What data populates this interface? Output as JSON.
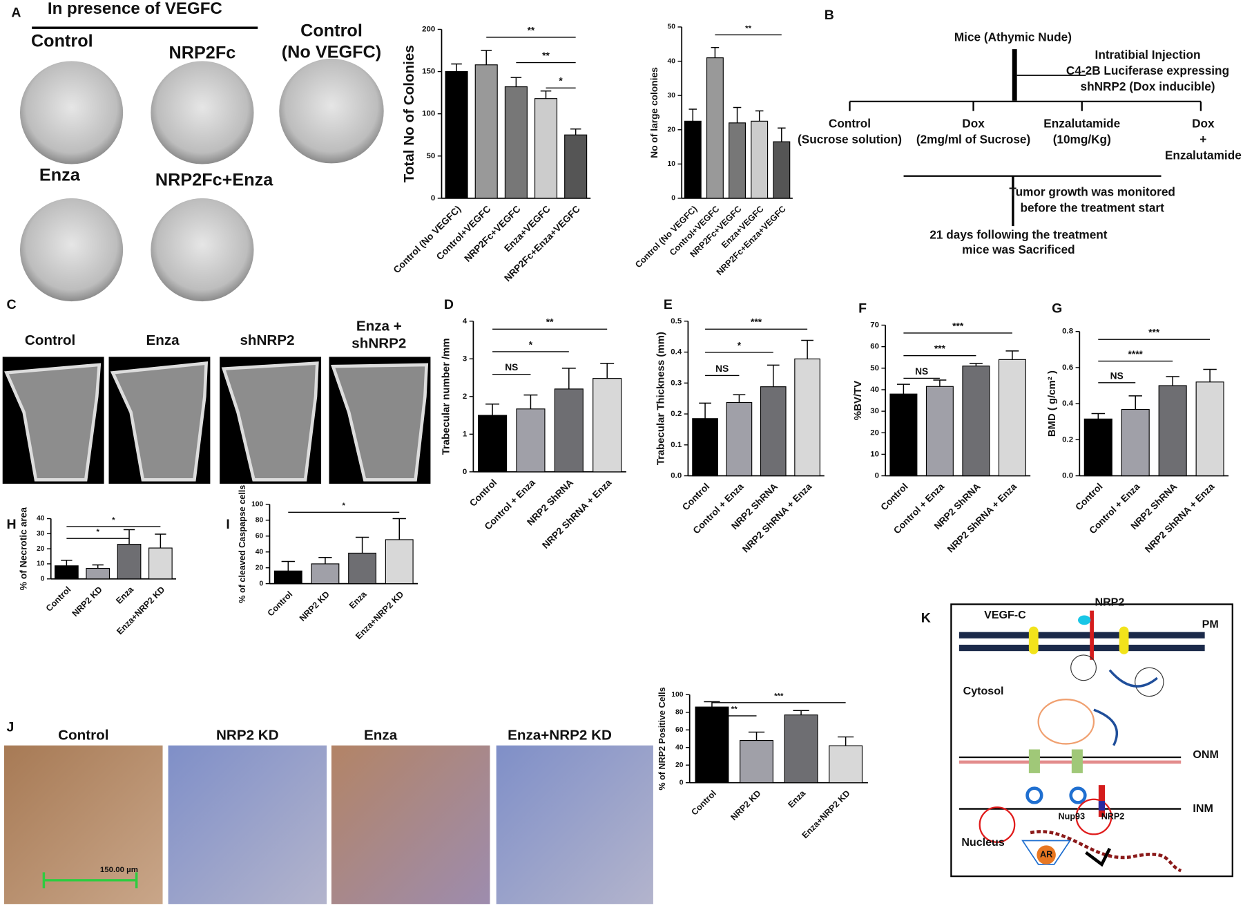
{
  "figure": {
    "panel_labels": [
      "A",
      "B",
      "C",
      "D",
      "E",
      "F",
      "G",
      "H",
      "I",
      "J",
      "K"
    ],
    "panel_a": {
      "heading": "In presence of VEGFC",
      "images": [
        [
          "Control"
        ],
        [
          "NRP2Fc"
        ],
        [
          "Control",
          "(No VEGFC)"
        ],
        [
          "Enza"
        ],
        [
          "NRP2Fc+Enza"
        ]
      ]
    },
    "panel_b": {
      "lines": [
        "Mice (Athymic Nude)",
        "Intratibial Injection",
        "C4-2B Luciferase expressing",
        "shNRP2 (Dox inducible)",
        "Control",
        "(Sucrose solution)",
        "Dox",
        "(2mg/ml of Sucrose)",
        "Enzalutamide",
        "(10mg/Kg)",
        "Dox",
        "+",
        "Enzalutamide",
        "Tumor growth was monitored",
        "before the treatment start",
        "21 days following the treatment",
        "mice was Sacrificed"
      ]
    },
    "panel_c": {
      "images": [
        [
          "Control"
        ],
        [
          "Enza"
        ],
        [
          "shNRP2"
        ],
        [
          "Enza +",
          "shNRP2"
        ]
      ]
    },
    "panel_j": {
      "images": [
        "Control",
        "NRP2 KD",
        "Enza",
        "Enza+NRP2 KD"
      ],
      "scale_bar": "150.00 µm"
    },
    "panel_k": {
      "labels": [
        "VEGF-C",
        "NRP2",
        "PM",
        "Cytosol",
        "ONM",
        "INM",
        "Nup93",
        "NRP2",
        "Nucleus",
        "AR"
      ]
    }
  },
  "chart_data": [
    {
      "type": "bar",
      "ylabel": "Total No of Colonies",
      "categories": [
        "Control (No VEGFC)",
        "Control+VEGFC",
        "NRP2Fc+VEGFC",
        "Enza+VEGFC",
        "NRP2Fc+Enza+VEGFC"
      ],
      "values": [
        150,
        158,
        132,
        118,
        75
      ],
      "errors": [
        9,
        17,
        11,
        9,
        7
      ],
      "colors": [
        "#000000",
        "#999999",
        "#777777",
        "#cccccc",
        "#555555"
      ],
      "ylim": [
        0,
        200
      ],
      "yticks": [
        0,
        50,
        100,
        150,
        200
      ],
      "annotations": [
        {
          "label": "*",
          "between": [
            "Enza+VEGFC",
            "NRP2Fc+Enza+VEGFC"
          ]
        },
        {
          "label": "**",
          "between": [
            "NRP2Fc+VEGFC",
            "NRP2Fc+Enza+VEGFC"
          ]
        },
        {
          "label": "**",
          "between": [
            "Control+VEGFC",
            "NRP2Fc+Enza+VEGFC"
          ]
        }
      ]
    },
    {
      "type": "bar",
      "ylabel": "No of large colonies",
      "categories": [
        "Control (No VEGFC)",
        "Control+VEGFC",
        "NRP2Fc+VEGFC",
        "Enza+VEGFC",
        "NRP2Fc+Enza+VEGFC"
      ],
      "values": [
        22.5,
        41,
        22,
        22.5,
        16.5
      ],
      "errors": [
        3.5,
        3,
        4.5,
        3,
        4
      ],
      "colors": [
        "#000000",
        "#999999",
        "#777777",
        "#cccccc",
        "#555555"
      ],
      "ylim": [
        0,
        50
      ],
      "yticks": [
        0,
        10,
        20,
        30,
        40,
        50
      ],
      "annotations": [
        {
          "label": "**",
          "between": [
            "Control+VEGFC",
            "NRP2Fc+Enza+VEGFC"
          ]
        }
      ]
    },
    {
      "type": "bar",
      "ylabel": "Trabecular number /mm",
      "categories": [
        "Control",
        "Control + Enza",
        "NRP2 ShRNA",
        "NRP2 ShRNA + Enza"
      ],
      "values": [
        1.5,
        1.67,
        2.2,
        2.48
      ],
      "errors": [
        0.3,
        0.37,
        0.55,
        0.4
      ],
      "colors": [
        "#000000",
        "#a0a0a8",
        "#6e6e72",
        "#d8d8d8"
      ],
      "ylim": [
        0,
        4
      ],
      "yticks": [
        0,
        1,
        2,
        3,
        4
      ],
      "annotations": [
        {
          "label": "NS",
          "between": [
            "Control",
            "Control + Enza"
          ]
        },
        {
          "label": "*",
          "between": [
            "Control",
            "NRP2 ShRNA"
          ]
        },
        {
          "label": "**",
          "between": [
            "Control",
            "NRP2 ShRNA + Enza"
          ]
        }
      ]
    },
    {
      "type": "bar",
      "ylabel": "Trabecular Thickness (mm)",
      "categories": [
        "Control",
        "Control + Enza",
        "NRP2 ShRNA",
        "NRP2 ShRNA + Enza"
      ],
      "values": [
        0.185,
        0.237,
        0.288,
        0.378
      ],
      "errors": [
        0.05,
        0.025,
        0.07,
        0.06
      ],
      "colors": [
        "#000000",
        "#a0a0a8",
        "#6e6e72",
        "#d8d8d8"
      ],
      "ylim": [
        0,
        0.5
      ],
      "yticks": [
        {
          "value": 0,
          "label": "0.0"
        },
        0.1,
        0.2,
        0.3,
        0.4,
        0.5
      ],
      "annotations": [
        {
          "label": "NS",
          "between": [
            "Control",
            "Control + Enza"
          ]
        },
        {
          "label": "*",
          "between": [
            "Control",
            "NRP2 ShRNA"
          ]
        },
        {
          "label": "***",
          "between": [
            "Control",
            "NRP2 ShRNA + Enza"
          ]
        }
      ]
    },
    {
      "type": "bar",
      "ylabel": "%BV/TV",
      "categories": [
        "Control",
        "Control + Enza",
        "NRP2 ShRNA",
        "NRP2 ShRNA + Enza"
      ],
      "values": [
        38,
        41.5,
        51,
        54
      ],
      "errors": [
        4.5,
        3,
        1.2,
        4
      ],
      "colors": [
        "#000000",
        "#a0a0a8",
        "#6e6e72",
        "#d8d8d8"
      ],
      "ylim": [
        0,
        70
      ],
      "yticks": [
        0,
        10,
        20,
        30,
        40,
        50,
        60,
        70
      ],
      "annotations": [
        {
          "label": "NS",
          "between": [
            "Control",
            "Control + Enza"
          ]
        },
        {
          "label": "***",
          "between": [
            "Control",
            "NRP2 ShRNA"
          ]
        },
        {
          "label": "***",
          "between": [
            "Control",
            "NRP2 ShRNA + Enza"
          ]
        }
      ]
    },
    {
      "type": "bar",
      "ylabel": "BMD ( g/cm² )",
      "categories": [
        "Control",
        "Control + Enza",
        "NRP2 ShRNA",
        "NRP2 ShRNA + Enza"
      ],
      "values": [
        0.315,
        0.368,
        0.5,
        0.52
      ],
      "errors": [
        0.03,
        0.075,
        0.05,
        0.07
      ],
      "colors": [
        "#000000",
        "#a0a0a8",
        "#6e6e72",
        "#d8d8d8"
      ],
      "ylim": [
        0,
        0.8
      ],
      "yticks": [
        {
          "value": 0,
          "label": "0.0"
        },
        0.2,
        0.4,
        0.6,
        0.8
      ],
      "annotations": [
        {
          "label": "NS",
          "between": [
            "Control",
            "Control + Enza"
          ]
        },
        {
          "label": "****",
          "between": [
            "Control",
            "NRP2 ShRNA"
          ]
        },
        {
          "label": "***",
          "between": [
            "Control",
            "NRP2 ShRNA + Enza"
          ]
        }
      ]
    },
    {
      "type": "bar",
      "ylabel": "% of Necrotic area",
      "categories": [
        "Control",
        "NRP2 KD",
        "Enza",
        "Enza+NRP2 KD"
      ],
      "values": [
        8.7,
        7,
        23,
        20.5
      ],
      "errors": [
        3.7,
        2.3,
        9.7,
        9.2
      ],
      "colors": [
        "#000000",
        "#a0a0a8",
        "#6e6e72",
        "#d8d8d8"
      ],
      "ylim": [
        0,
        40
      ],
      "yticks": [
        0,
        10,
        20,
        30,
        40
      ],
      "annotations": [
        {
          "label": "*",
          "between": [
            "Control",
            "Enza"
          ]
        },
        {
          "label": "*",
          "between": [
            "Control",
            "Enza+NRP2 KD"
          ]
        }
      ]
    },
    {
      "type": "bar",
      "ylabel": "% of cleaved Caspapse cells",
      "categories": [
        "Control",
        "NRP2 KD",
        "Enza",
        "Enza+NRP2 KD"
      ],
      "values": [
        16,
        25,
        38.5,
        55.5
      ],
      "errors": [
        12,
        8,
        20,
        26.5
      ],
      "colors": [
        "#000000",
        "#a0a0a8",
        "#6e6e72",
        "#d8d8d8"
      ],
      "ylim": [
        0,
        100
      ],
      "yticks": [
        0,
        20,
        40,
        60,
        80,
        100
      ],
      "annotations": [
        {
          "label": "*",
          "between": [
            "Control",
            "Enza+NRP2 KD"
          ]
        }
      ]
    },
    {
      "type": "bar",
      "ylabel": "% of NRP2 Positive Cells",
      "categories": [
        "Control",
        "NRP2 KD",
        "Enza",
        "Enza+NRP2 KD"
      ],
      "values": [
        86,
        48,
        77,
        42
      ],
      "errors": [
        6,
        9.5,
        5,
        10
      ],
      "colors": [
        "#000000",
        "#a0a0a8",
        "#6e6e72",
        "#d8d8d8"
      ],
      "ylim": [
        0,
        100
      ],
      "yticks": [
        0,
        20,
        40,
        60,
        80,
        100
      ],
      "annotations": [
        {
          "label": "**",
          "between": [
            "Control",
            "NRP2 KD"
          ]
        },
        {
          "label": "***",
          "between": [
            "Control",
            "Enza+NRP2 KD"
          ]
        }
      ]
    }
  ]
}
